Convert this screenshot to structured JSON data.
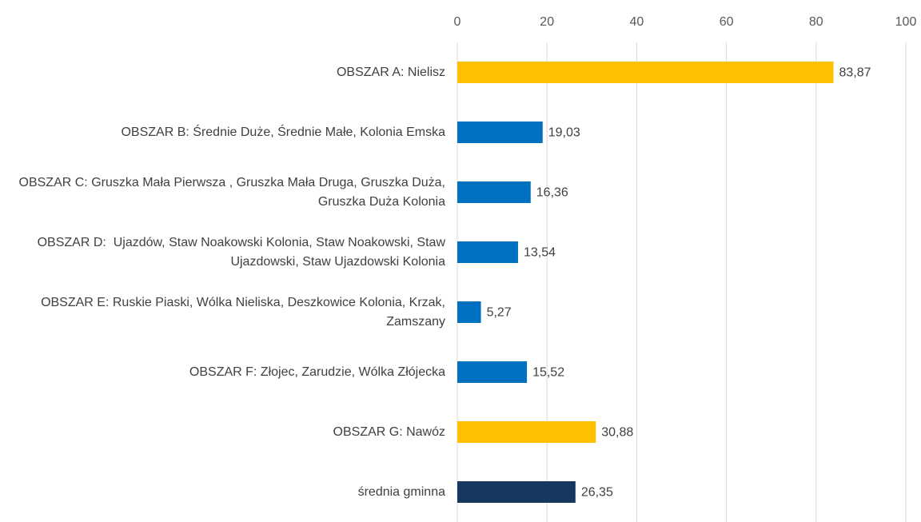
{
  "chart_data": {
    "type": "hbar",
    "categories": [
      "OBSZAR A: Nielisz",
      "OBSZAR B: Średnie Duże, Średnie Małe, Kolonia Emska",
      "OBSZAR C: Gruszka Mała Pierwsza , Gruszka Mała Druga, Gruszka Duża, Gruszka Duża Kolonia",
      "OBSZAR D:  Ujazdów, Staw Noakowski Kolonia, Staw Noakowski, Staw Ujazdowski, Staw Ujazdowski Kolonia",
      "OBSZAR E: Ruskie Piaski, Wólka Nieliska, Deszkowice Kolonia, Krzak, Zamszany",
      "OBSZAR F: Złojec, Zarudzie, Wólka Złójecka",
      "OBSZAR G: Nawóz",
      "średnia gminna"
    ],
    "values": [
      83.87,
      19.03,
      16.36,
      13.54,
      5.27,
      15.52,
      30.88,
      26.35
    ],
    "value_labels": [
      "83,87",
      "19,03",
      "16,36",
      "13,54",
      "5,27",
      "15,52",
      "30,88",
      "26,35"
    ],
    "colors": [
      "#FFC000",
      "#0070C0",
      "#0070C0",
      "#0070C0",
      "#0070C0",
      "#0070C0",
      "#FFC000",
      "#17375E"
    ],
    "xlim": [
      0,
      100
    ],
    "xticks": [
      0,
      20,
      40,
      60,
      80,
      100
    ],
    "grid": true
  }
}
